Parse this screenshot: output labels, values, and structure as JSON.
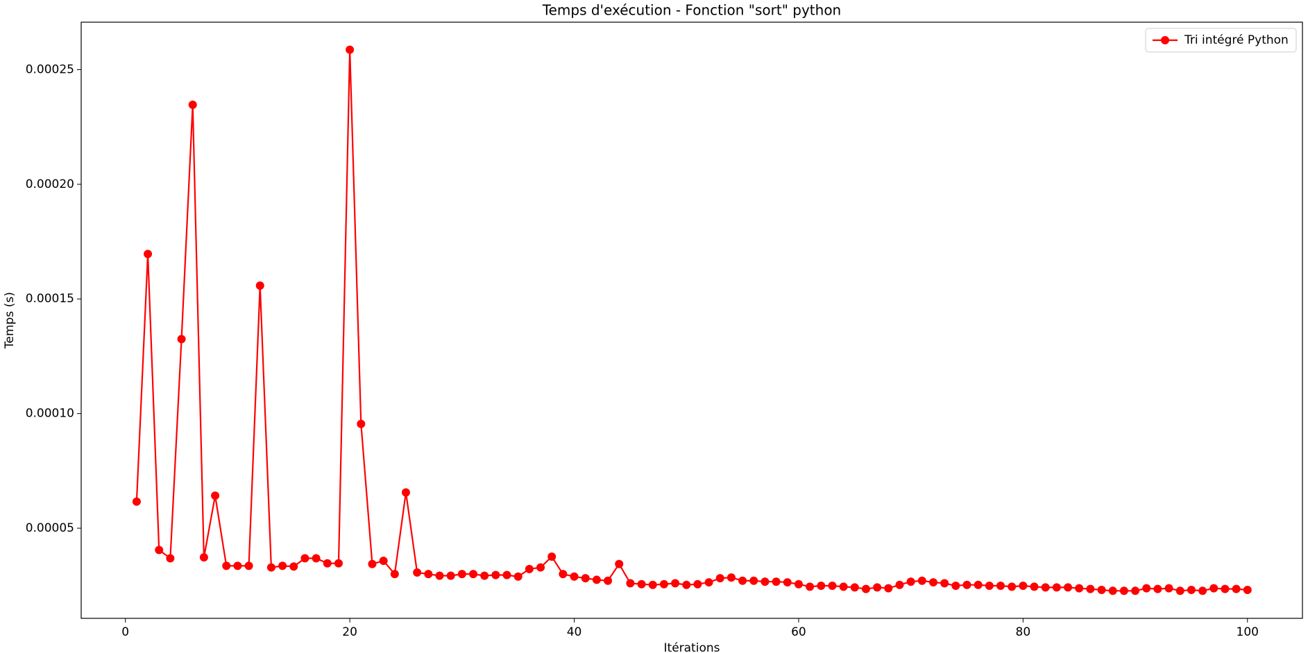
{
  "chart_data": {
    "type": "line",
    "title": "Temps d'exécution - Fonction \"sort\" python",
    "x_label": "Itérations",
    "y_label": "Temps (s)",
    "x": [
      1,
      2,
      3,
      4,
      5,
      6,
      7,
      8,
      9,
      10,
      11,
      12,
      13,
      14,
      15,
      16,
      17,
      18,
      19,
      20,
      21,
      22,
      23,
      24,
      25,
      26,
      27,
      28,
      29,
      30,
      31,
      32,
      33,
      34,
      35,
      36,
      37,
      38,
      39,
      40,
      41,
      42,
      43,
      44,
      45,
      46,
      47,
      48,
      49,
      50,
      51,
      52,
      53,
      54,
      55,
      56,
      57,
      58,
      59,
      60,
      61,
      62,
      63,
      64,
      65,
      66,
      67,
      68,
      69,
      70,
      71,
      72,
      73,
      74,
      75,
      76,
      77,
      78,
      79,
      80,
      81,
      82,
      83,
      84,
      85,
      86,
      87,
      88,
      89,
      90,
      91,
      92,
      93,
      94,
      95,
      96,
      97,
      98,
      99,
      100
    ],
    "series": [
      {
        "name": "Tri intégré Python",
        "color": "#ff0000",
        "values": [
          6.16e-05,
          0.0001696,
          4.05e-05,
          3.69e-05,
          0.0001325,
          0.0002347,
          3.73e-05,
          6.42e-05,
          3.36e-05,
          3.36e-05,
          3.36e-05,
          0.0001558,
          3.29e-05,
          3.36e-05,
          3.33e-05,
          3.69e-05,
          3.69e-05,
          3.47e-05,
          3.47e-05,
          0.0002587,
          9.55e-05,
          3.44e-05,
          3.58e-05,
          3e-05,
          6.56e-05,
          3.07e-05,
          3e-05,
          2.93e-05,
          2.93e-05,
          3e-05,
          3e-05,
          2.93e-05,
          2.96e-05,
          2.96e-05,
          2.89e-05,
          3.22e-05,
          3.29e-05,
          3.76e-05,
          3e-05,
          2.89e-05,
          2.82e-05,
          2.75e-05,
          2.71e-05,
          3.44e-05,
          2.6e-05,
          2.56e-05,
          2.53e-05,
          2.56e-05,
          2.6e-05,
          2.53e-05,
          2.56e-05,
          2.64e-05,
          2.82e-05,
          2.85e-05,
          2.71e-05,
          2.71e-05,
          2.67e-05,
          2.67e-05,
          2.64e-05,
          2.56e-05,
          2.45e-05,
          2.49e-05,
          2.49e-05,
          2.45e-05,
          2.42e-05,
          2.35e-05,
          2.42e-05,
          2.38e-05,
          2.53e-05,
          2.67e-05,
          2.71e-05,
          2.64e-05,
          2.6e-05,
          2.49e-05,
          2.53e-05,
          2.53e-05,
          2.49e-05,
          2.49e-05,
          2.45e-05,
          2.49e-05,
          2.45e-05,
          2.42e-05,
          2.42e-05,
          2.42e-05,
          2.38e-05,
          2.35e-05,
          2.31e-05,
          2.27e-05,
          2.27e-05,
          2.27e-05,
          2.38e-05,
          2.35e-05,
          2.38e-05,
          2.27e-05,
          2.31e-05,
          2.27e-05,
          2.38e-05,
          2.35e-05,
          2.35e-05,
          2.31e-05
        ]
      }
    ],
    "xlim": [
      -3.94,
      104.9
    ],
    "ylim": [
      1.07e-05,
      0.0002707
    ],
    "xticks": [
      0,
      20,
      40,
      60,
      80,
      100
    ],
    "yticks": [
      5e-05,
      {
        "value": 0.0001,
        "label": "0.00010"
      },
      0.00015,
      {
        "value": 0.0002,
        "label": "0.00020"
      },
      0.00025
    ],
    "legend": "upper right"
  }
}
